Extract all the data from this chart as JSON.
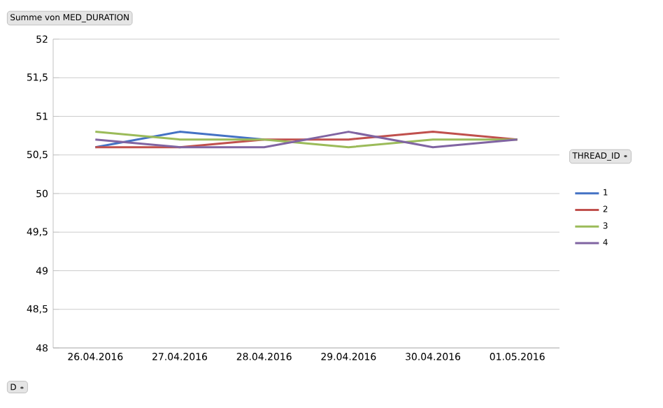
{
  "chart_data": {
    "type": "line",
    "title": "Summe von MED_DURATION",
    "xlabel": "D",
    "legend_title": "THREAD_ID",
    "categories": [
      "26.04.2016",
      "27.04.2016",
      "28.04.2016",
      "29.04.2016",
      "30.04.2016",
      "01.05.2016"
    ],
    "series": [
      {
        "name": "1",
        "color": "#4472c4",
        "values": [
          50.6,
          50.8,
          50.7,
          null,
          null,
          null
        ]
      },
      {
        "name": "2",
        "color": "#c0504d",
        "values": [
          50.6,
          50.6,
          50.7,
          50.7,
          50.8,
          50.7
        ]
      },
      {
        "name": "3",
        "color": "#9bbb59",
        "values": [
          50.8,
          50.7,
          50.7,
          50.6,
          50.7,
          50.7
        ]
      },
      {
        "name": "4",
        "color": "#8064a2",
        "values": [
          50.7,
          50.6,
          50.6,
          50.8,
          50.6,
          50.7
        ]
      }
    ],
    "ylim": [
      48,
      52
    ],
    "yticks": [
      48,
      {
        "value": 48.5,
        "label": "48,5"
      },
      49,
      {
        "value": 49.5,
        "label": "49,5"
      },
      50,
      {
        "value": 50.5,
        "label": "50,5"
      },
      51,
      {
        "value": 51.5,
        "label": "51,5"
      },
      52
    ],
    "grid": "y",
    "legend": "right",
    "marker": "none",
    "line_style": "solid"
  }
}
